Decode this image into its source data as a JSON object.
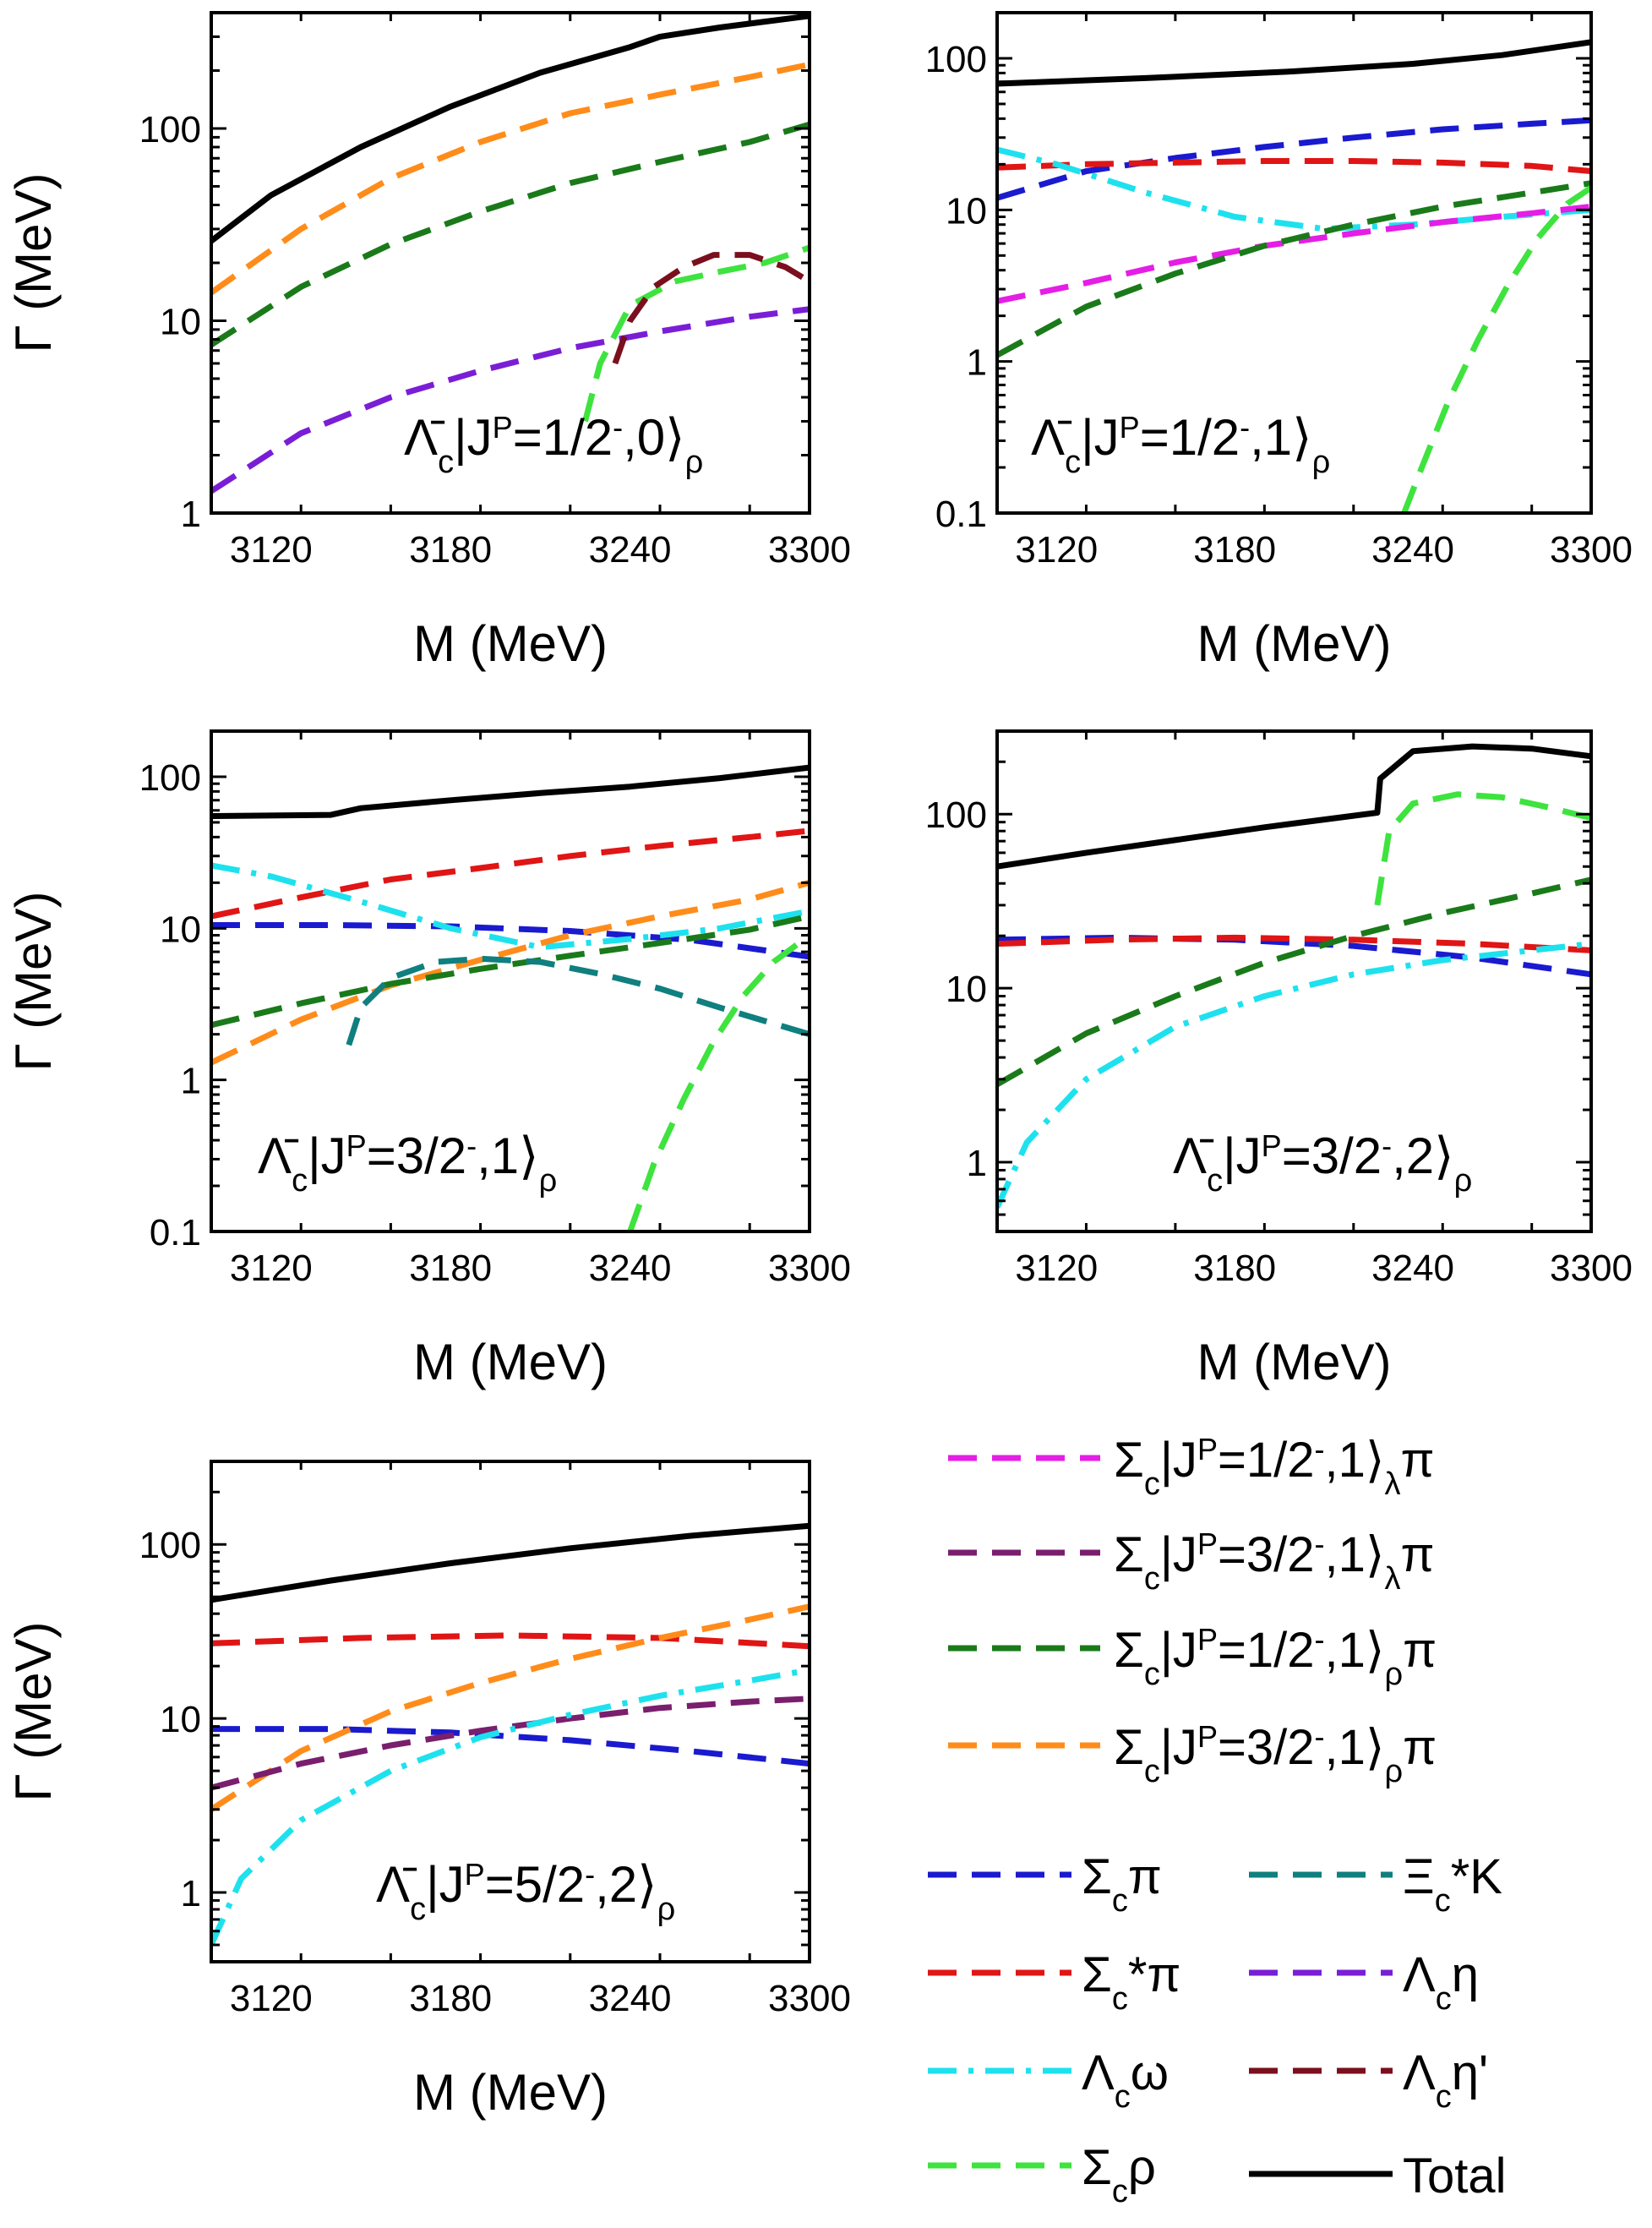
{
  "series_styles": [
    {
      "id": "sigc_pi",
      "color": "#1a1acf",
      "dash": "dash"
    },
    {
      "id": "sigcstar_pi",
      "color": "#e01515",
      "dash": "dash"
    },
    {
      "id": "lamc_omega",
      "color": "#1ee1ee",
      "dash": "dashdot"
    },
    {
      "id": "sigc_rho",
      "color": "#3ee33e",
      "dash": "dash"
    },
    {
      "id": "xic_k",
      "color": "#0f7f7f",
      "dash": "dash"
    },
    {
      "id": "lamc_eta",
      "color": "#7a1ed6",
      "dash": "dash"
    },
    {
      "id": "lamc_etap",
      "color": "#7a0f1e",
      "dash": "dash"
    },
    {
      "id": "total",
      "color": "#000000",
      "dash": "solid"
    },
    {
      "id": "sigc12l_pi",
      "color": "#e51ee5",
      "dash": "dash"
    },
    {
      "id": "sigc32l_pi",
      "color": "#7a1e6e",
      "dash": "dash"
    },
    {
      "id": "sigc12r_pi",
      "color": "#1a7a1a",
      "dash": "dash"
    },
    {
      "id": "sigc32r_pi",
      "color": "#ff8c1a",
      "dash": "dash"
    }
  ],
  "legend": [
    {
      "series": "sigc12l_pi",
      "label": "Σc|J^P=1/2⁻,1⟩λπ"
    },
    {
      "series": "sigc32l_pi",
      "label": "Σc|J^P=3/2⁻,1⟩λπ"
    },
    {
      "series": "sigc12r_pi",
      "label": "Σc|J^P=1/2⁻,1⟩ρπ"
    },
    {
      "series": "sigc32r_pi",
      "label": "Σc|J^P=3/2⁻,1⟩ρπ"
    },
    {
      "series": "sigc_pi",
      "label": "Σcπ"
    },
    {
      "series": "xic_k",
      "label": "Ξc*K"
    },
    {
      "series": "sigcstar_pi",
      "label": "Σc*π"
    },
    {
      "series": "lamc_eta",
      "label": "Λcη"
    },
    {
      "series": "lamc_omega",
      "label": "Λcω"
    },
    {
      "series": "lamc_etap",
      "label": "Λcη'"
    },
    {
      "series": "sigc_rho",
      "label": "Σcρ"
    },
    {
      "series": "total",
      "label": "Total"
    }
  ],
  "chart_data": [
    {
      "type": "line",
      "panel": "Λ̄c|J^P=1/2⁻,0⟩ρ",
      "xlabel": "M (MeV)",
      "ylabel": "Γ (MeV)",
      "yscale": "log",
      "xlim": [
        3100,
        3300
      ],
      "ylim": [
        1,
        400
      ],
      "xticks": [
        "3120",
        "3180",
        "3240",
        "3300"
      ],
      "yticks": [
        "1",
        "10",
        "100"
      ],
      "series": [
        {
          "style": "total",
          "x": [
            3100,
            3120,
            3150,
            3180,
            3210,
            3240,
            3250,
            3270,
            3300
          ],
          "y": [
            26,
            45,
            80,
            130,
            195,
            265,
            300,
            335,
            385
          ]
        },
        {
          "style": "sigc32r_pi",
          "x": [
            3100,
            3130,
            3160,
            3190,
            3220,
            3250,
            3280,
            3300
          ],
          "y": [
            14,
            30,
            55,
            85,
            120,
            150,
            185,
            215
          ]
        },
        {
          "style": "sigc12r_pi",
          "x": [
            3100,
            3130,
            3160,
            3190,
            3220,
            3250,
            3280,
            3300
          ],
          "y": [
            7.5,
            15,
            25,
            37,
            52,
            67,
            85,
            105
          ]
        },
        {
          "style": "lamc_eta",
          "x": [
            3100,
            3130,
            3160,
            3190,
            3220,
            3250,
            3280,
            3300
          ],
          "y": [
            1.3,
            2.6,
            4,
            5.5,
            7.2,
            8.8,
            10.5,
            11.5
          ]
        },
        {
          "style": "sigc_rho",
          "x": [
            3225,
            3230,
            3240,
            3255,
            3270,
            3285,
            3300
          ],
          "y": [
            3,
            6,
            12,
            16,
            18,
            20,
            24
          ]
        },
        {
          "style": "lamc_etap",
          "x": [
            3235,
            3240,
            3248,
            3258,
            3268,
            3280,
            3292,
            3300
          ],
          "y": [
            6,
            10,
            15,
            19,
            22,
            22,
            19,
            16
          ]
        }
      ]
    },
    {
      "type": "line",
      "panel": "Λ̄c|J^P=1/2⁻,1⟩ρ",
      "xlabel": "M (MeV)",
      "ylabel": "",
      "yscale": "log",
      "xlim": [
        3100,
        3300
      ],
      "ylim": [
        0.1,
        200
      ],
      "xticks": [
        "3120",
        "3180",
        "3240",
        "3300"
      ],
      "yticks": [
        "0.1",
        "1",
        "10",
        "100"
      ],
      "series": [
        {
          "style": "total",
          "x": [
            3100,
            3150,
            3200,
            3240,
            3270,
            3300
          ],
          "y": [
            68,
            74,
            82,
            92,
            105,
            128
          ]
        },
        {
          "style": "sigc_pi",
          "x": [
            3100,
            3130,
            3160,
            3190,
            3220,
            3250,
            3280,
            3300
          ],
          "y": [
            12,
            18,
            22,
            26,
            30,
            34,
            37,
            39
          ]
        },
        {
          "style": "sigcstar_pi",
          "x": [
            3100,
            3130,
            3160,
            3190,
            3220,
            3250,
            3280,
            3300
          ],
          "y": [
            19,
            20,
            20.5,
            21,
            21,
            20.5,
            19.5,
            18
          ]
        },
        {
          "style": "lamc_omega",
          "x": [
            3100,
            3120,
            3150,
            3180,
            3210,
            3240,
            3270,
            3300
          ],
          "y": [
            25,
            20,
            13,
            9,
            7.5,
            8,
            9,
            10
          ]
        },
        {
          "style": "sigc12l_pi",
          "x": [
            3100,
            3130,
            3160,
            3190,
            3220,
            3250,
            3280,
            3300
          ],
          "y": [
            2.5,
            3.3,
            4.5,
            5.8,
            7,
            8.3,
            9.5,
            10.5
          ]
        },
        {
          "style": "sigc12r_pi",
          "x": [
            3100,
            3130,
            3160,
            3190,
            3220,
            3250,
            3280,
            3300
          ],
          "y": [
            1.1,
            2.3,
            3.8,
            5.8,
            8,
            10.5,
            13,
            15
          ]
        },
        {
          "style": "sigc_rho",
          "x": [
            3237,
            3243,
            3252,
            3262,
            3272,
            3282,
            3292,
            3300
          ],
          "y": [
            0.1,
            0.2,
            0.55,
            1.4,
            3.2,
            6.5,
            11,
            14
          ]
        }
      ]
    },
    {
      "type": "line",
      "panel": "Λ̄c|J^P=3/2⁻,1⟩ρ",
      "xlabel": "M (MeV)",
      "ylabel": "Γ (MeV)",
      "yscale": "log",
      "xlim": [
        3100,
        3300
      ],
      "ylim": [
        0.1,
        200
      ],
      "xticks": [
        "3120",
        "3180",
        "3240",
        "3300"
      ],
      "yticks": [
        "0.1",
        "1",
        "10",
        "100"
      ],
      "series": [
        {
          "style": "total",
          "x": [
            3100,
            3140,
            3150,
            3180,
            3210,
            3240,
            3270,
            3300
          ],
          "y": [
            55,
            56,
            62,
            70,
            78,
            86,
            98,
            115
          ]
        },
        {
          "style": "sigcstar_pi",
          "x": [
            3100,
            3130,
            3160,
            3190,
            3220,
            3250,
            3280,
            3300
          ],
          "y": [
            12,
            16,
            21,
            25,
            30,
            35,
            40,
            44
          ]
        },
        {
          "style": "sigc_pi",
          "x": [
            3100,
            3140,
            3180,
            3220,
            3260,
            3300
          ],
          "y": [
            10.5,
            10.5,
            10.3,
            9.6,
            8.4,
            6.5
          ]
        },
        {
          "style": "lamc_omega",
          "x": [
            3100,
            3120,
            3150,
            3180,
            3210,
            3240,
            3270,
            3300
          ],
          "y": [
            26,
            22,
            15,
            10,
            7.5,
            8.5,
            10,
            13
          ]
        },
        {
          "style": "sigc32r_pi",
          "x": [
            3100,
            3130,
            3160,
            3190,
            3220,
            3250,
            3280,
            3300
          ],
          "y": [
            1.3,
            2.5,
            4.2,
            6.2,
            9,
            12,
            15.5,
            20
          ]
        },
        {
          "style": "sigc12r_pi",
          "x": [
            3100,
            3130,
            3160,
            3190,
            3220,
            3250,
            3280,
            3300
          ],
          "y": [
            2.3,
            3.2,
            4.3,
            5.4,
            6.6,
            8,
            9.8,
            12
          ]
        },
        {
          "style": "xic_k",
          "x": [
            3146,
            3150,
            3160,
            3175,
            3190,
            3210,
            3230,
            3250,
            3270,
            3300
          ],
          "y": [
            1.7,
            3,
            4.7,
            6,
            6.3,
            6,
            5,
            4,
            3,
            2
          ]
        },
        {
          "style": "sigc_rho",
          "x": [
            3240,
            3248,
            3258,
            3268,
            3278,
            3288,
            3300
          ],
          "y": [
            0.1,
            0.28,
            0.75,
            1.8,
            3.6,
            6,
            9
          ]
        }
      ]
    },
    {
      "type": "line",
      "panel": "Λ̄c|J^P=3/2⁻,2⟩ρ",
      "xlabel": "M (MeV)",
      "ylabel": "",
      "yscale": "log",
      "xlim": [
        3100,
        3300
      ],
      "ylim": [
        0.4,
        300
      ],
      "xticks": [
        "3120",
        "3180",
        "3240",
        "3300"
      ],
      "yticks": [
        "1",
        "10",
        "100"
      ],
      "series": [
        {
          "style": "total",
          "x": [
            3100,
            3130,
            3160,
            3190,
            3228,
            3229,
            3240,
            3260,
            3280,
            3300
          ],
          "y": [
            50,
            60,
            71,
            84,
            102,
            160,
            230,
            245,
            238,
            215
          ]
        },
        {
          "style": "sigc_pi",
          "x": [
            3100,
            3140,
            3180,
            3220,
            3260,
            3300
          ],
          "y": [
            19,
            19.5,
            19,
            17.5,
            15,
            12
          ]
        },
        {
          "style": "sigcstar_pi",
          "x": [
            3100,
            3140,
            3180,
            3220,
            3260,
            3300
          ],
          "y": [
            18,
            19,
            19.5,
            19,
            18,
            16.5
          ]
        },
        {
          "style": "sigc12r_pi",
          "x": [
            3100,
            3130,
            3160,
            3190,
            3220,
            3250,
            3280,
            3300
          ],
          "y": [
            2.8,
            5.5,
            9,
            14,
            20,
            27,
            35,
            42
          ]
        },
        {
          "style": "lamc_omega",
          "x": [
            3100,
            3110,
            3130,
            3160,
            3190,
            3220,
            3250,
            3280,
            3300
          ],
          "y": [
            0.55,
            1.3,
            3,
            6,
            9,
            12,
            14.5,
            16.5,
            18
          ]
        },
        {
          "style": "sigc_rho",
          "x": [
            3228,
            3232,
            3240,
            3255,
            3270,
            3285,
            3300
          ],
          "y": [
            30,
            80,
            115,
            130,
            125,
            110,
            95
          ]
        }
      ]
    },
    {
      "type": "line",
      "panel": "Λ̄c|J^P=5/2⁻,2⟩ρ",
      "xlabel": "M (MeV)",
      "ylabel": "Γ (MeV)",
      "yscale": "log",
      "xlim": [
        3100,
        3300
      ],
      "ylim": [
        0.4,
        300
      ],
      "xticks": [
        "3120",
        "3180",
        "3240",
        "3300"
      ],
      "yticks": [
        "1",
        "10",
        "100"
      ],
      "series": [
        {
          "style": "total",
          "x": [
            3100,
            3140,
            3180,
            3220,
            3260,
            3300
          ],
          "y": [
            48,
            62,
            78,
            95,
            112,
            128
          ]
        },
        {
          "style": "sigcstar_pi",
          "x": [
            3100,
            3150,
            3200,
            3250,
            3300
          ],
          "y": [
            27,
            29,
            30,
            29,
            26
          ]
        },
        {
          "style": "sigc_pi",
          "x": [
            3100,
            3140,
            3180,
            3220,
            3260,
            3300
          ],
          "y": [
            8.7,
            8.7,
            8.3,
            7.5,
            6.5,
            5.5
          ]
        },
        {
          "style": "sigc32r_pi",
          "x": [
            3100,
            3130,
            3160,
            3190,
            3220,
            3250,
            3280,
            3300
          ],
          "y": [
            3,
            6.5,
            11,
            16,
            22,
            29,
            37,
            44
          ]
        },
        {
          "style": "sigc32l_pi",
          "x": [
            3100,
            3130,
            3160,
            3190,
            3220,
            3250,
            3280,
            3300
          ],
          "y": [
            4,
            5.5,
            7,
            8.5,
            10,
            11.5,
            12.5,
            13
          ]
        },
        {
          "style": "lamc_omega",
          "x": [
            3100,
            3110,
            3130,
            3160,
            3190,
            3220,
            3250,
            3280,
            3300
          ],
          "y": [
            0.5,
            1.2,
            2.6,
            5,
            7.8,
            10.5,
            13.5,
            16.5,
            19
          ]
        }
      ]
    }
  ]
}
